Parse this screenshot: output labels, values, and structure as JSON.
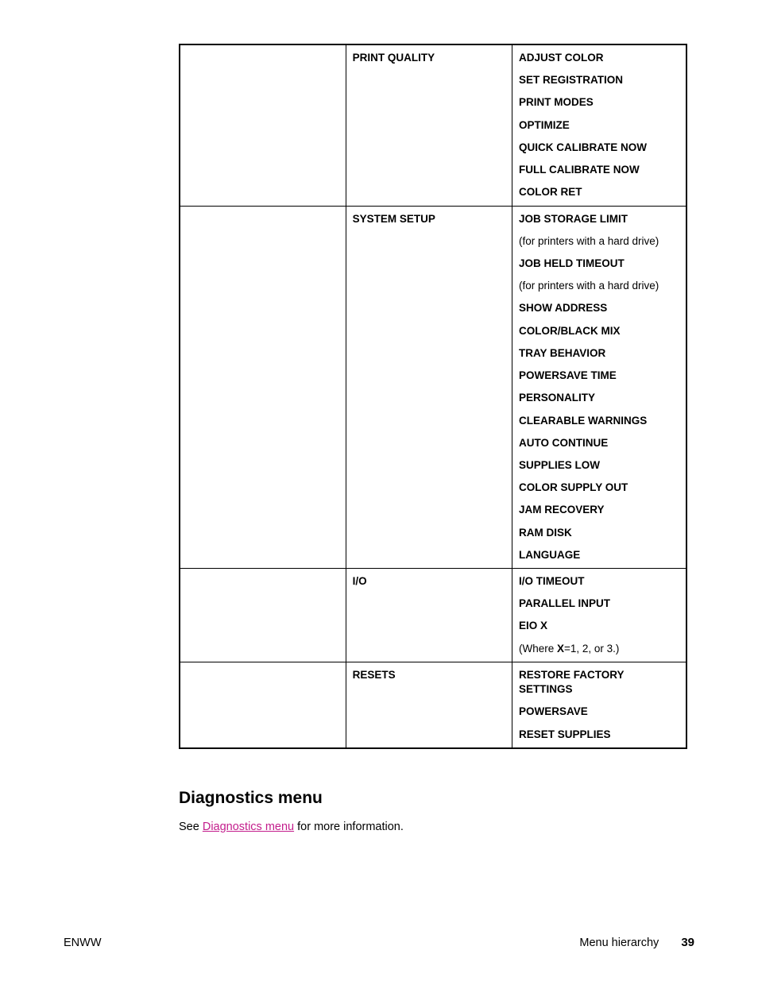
{
  "link_color": "#c31d8c",
  "text_color": "#000000",
  "table": {
    "rows": [
      {
        "col1": "",
        "col2": "PRINT QUALITY",
        "col3": [
          {
            "text": "ADJUST COLOR",
            "bold": true
          },
          {
            "text": "SET REGISTRATION",
            "bold": true
          },
          {
            "text": "PRINT MODES",
            "bold": true
          },
          {
            "text": "OPTIMIZE",
            "bold": true
          },
          {
            "text": "QUICK CALIBRATE NOW",
            "bold": true
          },
          {
            "text": "FULL CALIBRATE NOW",
            "bold": true
          },
          {
            "text": "COLOR RET",
            "bold": true
          }
        ]
      },
      {
        "col1": "",
        "col2": "SYSTEM SETUP",
        "col3": [
          {
            "text": "JOB STORAGE LIMIT",
            "bold": true
          },
          {
            "text": "(for printers with a hard drive)",
            "bold": false
          },
          {
            "text": "JOB HELD TIMEOUT",
            "bold": true
          },
          {
            "text": "(for printers with a hard drive)",
            "bold": false
          },
          {
            "text": "SHOW ADDRESS",
            "bold": true
          },
          {
            "text": "COLOR/BLACK MIX",
            "bold": true
          },
          {
            "text": "TRAY BEHAVIOR",
            "bold": true
          },
          {
            "text": "POWERSAVE TIME",
            "bold": true
          },
          {
            "text": "PERSONALITY",
            "bold": true
          },
          {
            "text": "CLEARABLE WARNINGS",
            "bold": true
          },
          {
            "text": "AUTO CONTINUE",
            "bold": true
          },
          {
            "text": "SUPPLIES LOW",
            "bold": true
          },
          {
            "text": "COLOR SUPPLY OUT",
            "bold": true
          },
          {
            "text": "JAM RECOVERY",
            "bold": true
          },
          {
            "text": "RAM DISK",
            "bold": true
          },
          {
            "text": "LANGUAGE",
            "bold": true
          }
        ]
      },
      {
        "col1": "",
        "col2": "I/O",
        "col3": [
          {
            "text": "I/O TIMEOUT",
            "bold": true
          },
          {
            "text": "PARALLEL INPUT",
            "bold": true
          },
          {
            "text": "EIO X",
            "bold": true
          },
          {
            "html": "(Where <span class='inline-bold'>X</span>=1, 2, or 3.)",
            "bold": false
          }
        ]
      },
      {
        "col1": "",
        "col2": "RESETS",
        "col3": [
          {
            "text": "RESTORE FACTORY SETTINGS",
            "bold": true
          },
          {
            "text": "POWERSAVE",
            "bold": true
          },
          {
            "text": "RESET SUPPLIES",
            "bold": true
          }
        ]
      }
    ]
  },
  "section_heading": "Diagnostics menu",
  "body_before": "See ",
  "body_link": "Diagnostics menu",
  "body_after": " for more information.",
  "footer": {
    "left": "ENWW",
    "right_label": "Menu hierarchy",
    "page": "39"
  }
}
